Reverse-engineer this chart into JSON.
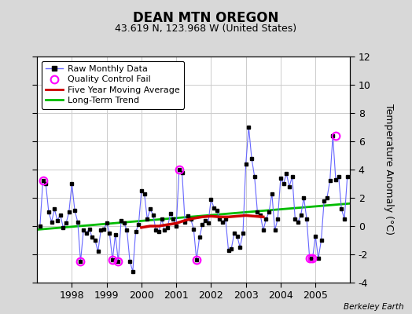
{
  "title": "DEAN MTN OREGON",
  "subtitle": "43.619 N, 123.968 W (United States)",
  "ylabel": "Temperature Anomaly (°C)",
  "attribution": "Berkeley Earth",
  "ylim": [
    -4,
    12
  ],
  "yticks": [
    -4,
    -2,
    0,
    2,
    4,
    6,
    8,
    10,
    12
  ],
  "bg_color": "#d8d8d8",
  "plot_bg_color": "#ffffff",
  "raw_x": [
    1997.083,
    1997.167,
    1997.25,
    1997.333,
    1997.417,
    1997.5,
    1997.583,
    1997.667,
    1997.75,
    1997.833,
    1997.917,
    1998.0,
    1998.083,
    1998.167,
    1998.25,
    1998.333,
    1998.417,
    1998.5,
    1998.583,
    1998.667,
    1998.75,
    1998.833,
    1998.917,
    1999.0,
    1999.083,
    1999.167,
    1999.25,
    1999.333,
    1999.417,
    1999.5,
    1999.583,
    1999.667,
    1999.75,
    1999.833,
    1999.917,
    2000.0,
    2000.083,
    2000.167,
    2000.25,
    2000.333,
    2000.417,
    2000.5,
    2000.583,
    2000.667,
    2000.75,
    2000.833,
    2000.917,
    2001.0,
    2001.083,
    2001.167,
    2001.25,
    2001.333,
    2001.417,
    2001.5,
    2001.583,
    2001.667,
    2001.75,
    2001.833,
    2001.917,
    2002.0,
    2002.083,
    2002.167,
    2002.25,
    2002.333,
    2002.417,
    2002.5,
    2002.583,
    2002.667,
    2002.75,
    2002.833,
    2002.917,
    2003.0,
    2003.083,
    2003.167,
    2003.25,
    2003.333,
    2003.417,
    2003.5,
    2003.583,
    2003.667,
    2003.75,
    2003.833,
    2003.917,
    2004.0,
    2004.083,
    2004.167,
    2004.25,
    2004.333,
    2004.417,
    2004.5,
    2004.583,
    2004.667,
    2004.75,
    2004.833,
    2004.917,
    2005.0,
    2005.083,
    2005.167,
    2005.25,
    2005.333,
    2005.417,
    2005.5,
    2005.583,
    2005.667,
    2005.75,
    2005.833,
    2005.917
  ],
  "raw_y": [
    0.0,
    3.2,
    3.0,
    1.0,
    0.3,
    1.2,
    0.4,
    0.8,
    -0.1,
    0.2,
    1.0,
    3.0,
    1.1,
    0.3,
    -2.5,
    -0.3,
    -0.5,
    -0.2,
    -0.8,
    -1.0,
    -1.8,
    -0.3,
    -0.2,
    0.2,
    -0.5,
    -2.4,
    -0.6,
    -2.5,
    0.4,
    0.2,
    -0.3,
    -2.5,
    -3.2,
    -0.4,
    0.1,
    2.5,
    2.3,
    0.5,
    1.2,
    0.8,
    -0.3,
    -0.4,
    0.5,
    -0.3,
    -0.1,
    0.9,
    0.5,
    0.0,
    4.0,
    3.8,
    0.3,
    0.7,
    0.5,
    -0.2,
    -2.4,
    -0.8,
    0.1,
    0.4,
    0.2,
    1.9,
    1.3,
    1.1,
    0.5,
    0.3,
    0.5,
    -1.7,
    -1.6,
    -0.5,
    -0.7,
    -1.5,
    -0.5,
    4.4,
    7.0,
    4.8,
    3.5,
    1.0,
    0.8,
    -0.3,
    0.5,
    1.0,
    2.3,
    -0.3,
    0.5,
    3.4,
    3.0,
    3.7,
    2.8,
    3.5,
    0.5,
    0.3,
    0.8,
    2.0,
    0.5,
    -2.3,
    -2.3,
    -0.7,
    -2.3,
    -1.0,
    1.8,
    2.0,
    3.2,
    6.4,
    3.3,
    3.5,
    1.2,
    0.5,
    3.5
  ],
  "qc_fail_x": [
    1997.167,
    1998.25,
    1999.167,
    1999.333,
    2001.083,
    2001.583,
    2004.833,
    2004.917,
    2005.583
  ],
  "qc_fail_y": [
    3.2,
    -2.5,
    -2.4,
    -2.5,
    4.0,
    -2.4,
    -2.3,
    -2.3,
    6.4
  ],
  "ma_x": [
    2000.0,
    2000.25,
    2000.5,
    2000.75,
    2001.0,
    2001.25,
    2001.5,
    2001.75,
    2002.0,
    2002.25,
    2002.5,
    2002.75,
    2003.0,
    2003.25,
    2003.5
  ],
  "ma_y": [
    -0.1,
    0.0,
    0.0,
    0.1,
    0.2,
    0.4,
    0.55,
    0.65,
    0.7,
    0.65,
    0.65,
    0.7,
    0.75,
    0.7,
    0.65
  ],
  "trend_x": [
    1997.0,
    2006.0
  ],
  "trend_y": [
    -0.25,
    1.6
  ],
  "raw_line_color": "#6666ff",
  "raw_marker_color": "#000000",
  "qc_color": "#ff00ff",
  "ma_color": "#cc0000",
  "trend_color": "#00bb00",
  "xlim": [
    1997.0,
    2006.0
  ],
  "xtick_positions": [
    1998,
    1999,
    2000,
    2001,
    2002,
    2003,
    2004,
    2005
  ],
  "xtick_labels": [
    "1998",
    "1999",
    "2000",
    "2001",
    "2002",
    "2003",
    "2004",
    "2005"
  ],
  "grid_color": "#cccccc",
  "title_fontsize": 12,
  "subtitle_fontsize": 9,
  "tick_fontsize": 9,
  "legend_fontsize": 8
}
